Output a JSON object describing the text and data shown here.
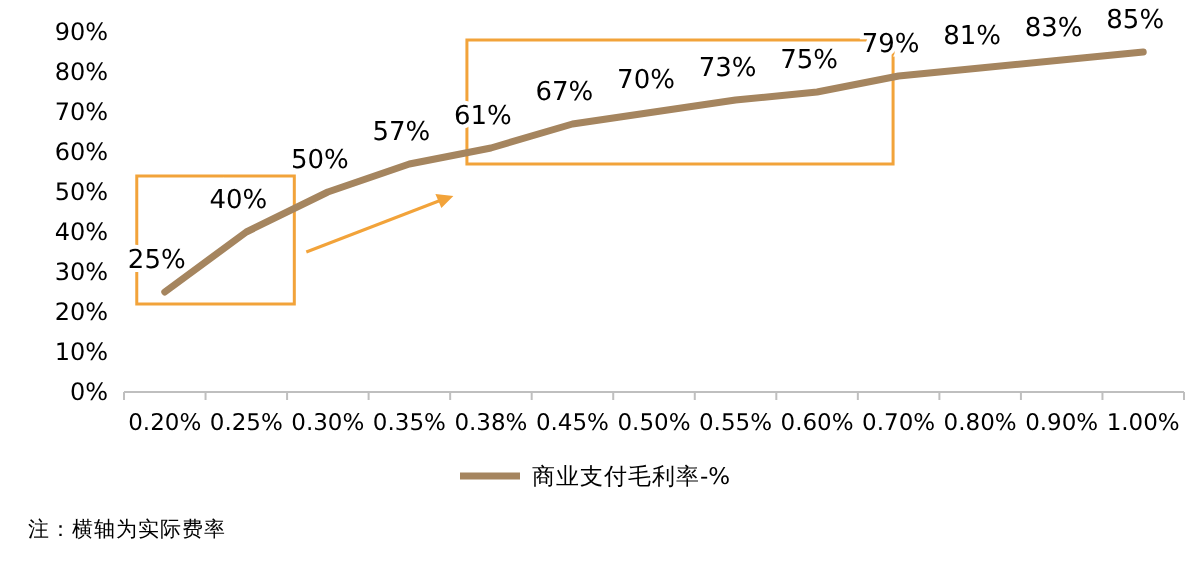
{
  "chart_data": {
    "type": "line",
    "categories": [
      "0.20%",
      "0.25%",
      "0.30%",
      "0.35%",
      "0.38%",
      "0.45%",
      "0.50%",
      "0.55%",
      "0.60%",
      "0.70%",
      "0.80%",
      "0.90%",
      "1.00%"
    ],
    "series": [
      {
        "name": "商业支付毛利率-%",
        "color": "#a5855f",
        "values": [
          25,
          40,
          50,
          57,
          61,
          67,
          70,
          73,
          75,
          79,
          81,
          83,
          85
        ]
      }
    ],
    "ylim": [
      0,
      90
    ],
    "yticks": [
      {
        "value": 0,
        "label": "0%"
      },
      {
        "value": 10,
        "label": "10%"
      },
      {
        "value": 20,
        "label": "20%"
      },
      {
        "value": 30,
        "label": "30%"
      },
      {
        "value": 40,
        "label": "40%"
      },
      {
        "value": 50,
        "label": "50%"
      },
      {
        "value": 60,
        "label": "60%"
      },
      {
        "value": 70,
        "label": "70%"
      },
      {
        "value": 80,
        "label": "80%"
      },
      {
        "value": 90,
        "label": "90%"
      }
    ],
    "value_labels": [
      "25%",
      "40%",
      "50%",
      "57%",
      "61%",
      "67%",
      "70%",
      "73%",
      "75%",
      "79%",
      "81%",
      "83%",
      "85%"
    ],
    "grid": false,
    "legend": "bottom",
    "marker": "none",
    "line_style": "solid",
    "annotations": [
      "注：横轴为实际费率"
    ]
  }
}
